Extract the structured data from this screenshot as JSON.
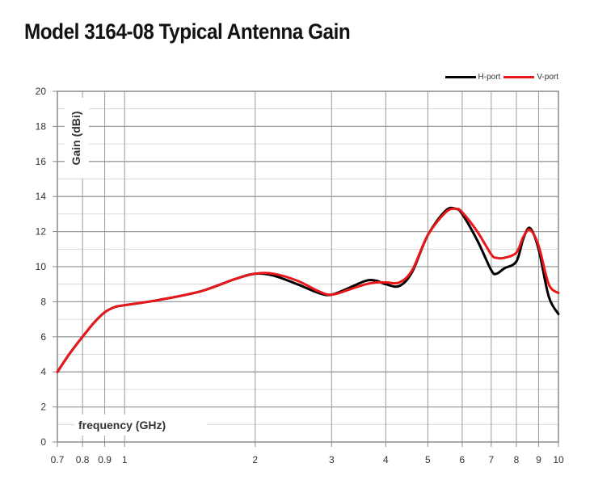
{
  "title": "Model 3164-08 Typical Antenna Gain",
  "chart_data": {
    "type": "line",
    "title": "Model 3164-08 Typical Antenna Gain",
    "xlabel": "frequency (GHz)",
    "ylabel": "Gain (dBi)",
    "xscale": "log",
    "xlim": [
      0.7,
      10
    ],
    "ylim": [
      0,
      20
    ],
    "xticks": [
      0.7,
      0.8,
      0.9,
      1,
      2,
      3,
      4,
      5,
      6,
      7,
      8,
      9,
      10
    ],
    "xtick_labels": [
      "0.7",
      "0.8",
      "0.9",
      "1",
      "2",
      "3",
      "4",
      "5",
      "6",
      "7",
      "8",
      "9",
      "10"
    ],
    "yticks": [
      0,
      2,
      4,
      6,
      8,
      10,
      12,
      14,
      16,
      18,
      20
    ],
    "ytick_labels": [
      "0",
      "2",
      "4",
      "6",
      "8",
      "10",
      "12",
      "14",
      "16",
      "18",
      "20"
    ],
    "grid": true,
    "legend_position": "top-right",
    "series": [
      {
        "name": "H-port",
        "color": "#000000",
        "x": [
          0.7,
          0.75,
          0.8,
          0.85,
          0.9,
          0.95,
          1.0,
          1.2,
          1.5,
          1.8,
          2.0,
          2.2,
          2.5,
          2.8,
          3.0,
          3.3,
          3.6,
          3.8,
          4.0,
          4.3,
          4.6,
          5.0,
          5.5,
          5.8,
          6.0,
          6.5,
          7.0,
          7.2,
          7.5,
          8.0,
          8.3,
          8.6,
          9.0,
          9.5,
          10.0
        ],
        "y": [
          4.0,
          5.1,
          6.0,
          6.8,
          7.4,
          7.7,
          7.8,
          8.1,
          8.6,
          9.3,
          9.6,
          9.5,
          9.0,
          8.5,
          8.4,
          8.8,
          9.2,
          9.2,
          9.0,
          8.9,
          9.7,
          11.8,
          13.2,
          13.3,
          13.0,
          11.5,
          9.8,
          9.6,
          9.9,
          10.3,
          11.6,
          12.2,
          11.0,
          8.3,
          7.3
        ]
      },
      {
        "name": "V-port",
        "color": "#e8171a",
        "x": [
          0.7,
          0.75,
          0.8,
          0.85,
          0.9,
          0.95,
          1.0,
          1.2,
          1.5,
          1.8,
          2.0,
          2.2,
          2.5,
          2.8,
          3.0,
          3.3,
          3.6,
          3.8,
          4.0,
          4.3,
          4.6,
          5.0,
          5.5,
          5.8,
          6.0,
          6.5,
          7.0,
          7.2,
          7.5,
          8.0,
          8.3,
          8.6,
          9.0,
          9.5,
          10.0
        ],
        "y": [
          4.0,
          5.1,
          6.0,
          6.8,
          7.4,
          7.7,
          7.8,
          8.1,
          8.6,
          9.3,
          9.6,
          9.6,
          9.2,
          8.6,
          8.4,
          8.7,
          9.0,
          9.1,
          9.1,
          9.1,
          9.8,
          11.8,
          13.1,
          13.3,
          13.1,
          12.0,
          10.7,
          10.5,
          10.5,
          10.8,
          11.7,
          12.1,
          11.2,
          9.0,
          8.5
        ]
      }
    ]
  }
}
